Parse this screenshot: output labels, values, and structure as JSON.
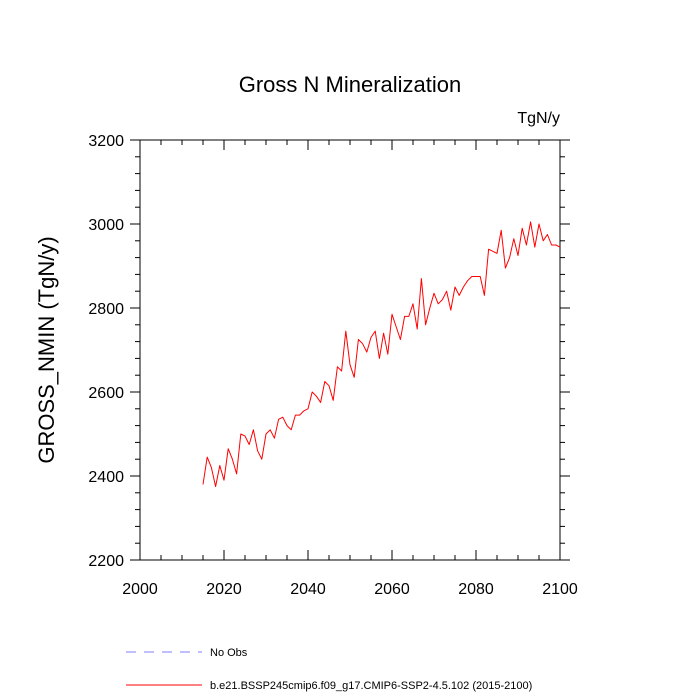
{
  "chart_data": {
    "type": "line",
    "title": "Gross N Mineralization",
    "unit_label": "TgN/y",
    "xlabel": "",
    "ylabel": "GROSS_NMIN  (TgN/y)",
    "xlim": [
      2000,
      2100
    ],
    "ylim": [
      2200,
      3200
    ],
    "x_ticks": [
      2000,
      2020,
      2040,
      2060,
      2080,
      2100
    ],
    "y_ticks": [
      2200,
      2400,
      2600,
      2800,
      3000,
      3200
    ],
    "grid": false,
    "legend_position": "bottom",
    "legend": [
      {
        "label": "No Obs",
        "color": "#7f7fff",
        "style": "dashed"
      },
      {
        "label": "b.e21.BSSP245cmip6.f09_g17.CMIP6-SSP2-4.5.102 (2015-2100)",
        "color": "#ff0000",
        "style": "solid"
      }
    ],
    "series": [
      {
        "color": "#ff0000",
        "x": [
          2015,
          2016,
          2017,
          2018,
          2019,
          2020,
          2021,
          2022,
          2023,
          2024,
          2025,
          2026,
          2027,
          2028,
          2029,
          2030,
          2031,
          2032,
          2033,
          2034,
          2035,
          2036,
          2037,
          2038,
          2039,
          2040,
          2041,
          2042,
          2043,
          2044,
          2045,
          2046,
          2047,
          2048,
          2049,
          2050,
          2051,
          2052,
          2053,
          2054,
          2055,
          2056,
          2057,
          2058,
          2059,
          2060,
          2061,
          2062,
          2063,
          2064,
          2065,
          2066,
          2067,
          2068,
          2069,
          2070,
          2071,
          2072,
          2073,
          2074,
          2075,
          2076,
          2077,
          2078,
          2079,
          2080,
          2081,
          2082,
          2083,
          2084,
          2085,
          2086,
          2087,
          2088,
          2089,
          2090,
          2091,
          2092,
          2093,
          2094,
          2095,
          2096,
          2097,
          2098,
          2099,
          2100
        ],
        "y": [
          2380,
          2445,
          2420,
          2375,
          2425,
          2390,
          2465,
          2440,
          2405,
          2500,
          2495,
          2475,
          2510,
          2460,
          2440,
          2500,
          2510,
          2490,
          2535,
          2540,
          2520,
          2510,
          2545,
          2545,
          2555,
          2560,
          2600,
          2590,
          2575,
          2625,
          2615,
          2580,
          2660,
          2650,
          2745,
          2665,
          2635,
          2725,
          2715,
          2695,
          2730,
          2745,
          2680,
          2740,
          2690,
          2785,
          2755,
          2725,
          2780,
          2780,
          2810,
          2750,
          2870,
          2760,
          2800,
          2835,
          2810,
          2820,
          2840,
          2795,
          2850,
          2830,
          2850,
          2865,
          2875,
          2875,
          2875,
          2830,
          2940,
          2935,
          2930,
          2985,
          2895,
          2920,
          2965,
          2925,
          2990,
          2950,
          3005,
          2945,
          3000,
          2960,
          2975,
          2950,
          2950,
          2945
        ]
      }
    ]
  }
}
